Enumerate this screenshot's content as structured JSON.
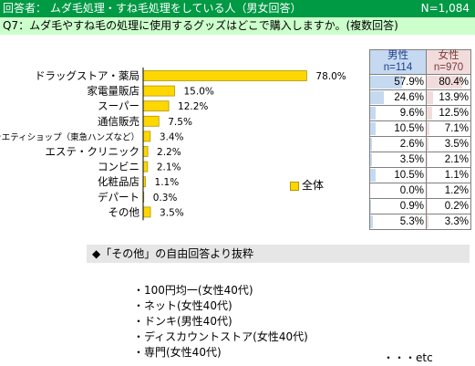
{
  "header": {
    "respondents": "回答者： ムダ毛処理・すね毛処理をしている人（男女回答）",
    "n": "N=1,084"
  },
  "question": "Q7：ムダ毛やすね毛の処理に使用するグッズはどこで購入しますか。(複数回答)",
  "colors": {
    "bar": "#ffd700",
    "bar_edge": "#b39600",
    "header": "#009944",
    "question_bg": "#ccffcc",
    "male": "#c5d9f1",
    "female": "#f2dcdb"
  },
  "chart_data": {
    "type": "bar",
    "orientation": "horizontal",
    "categories": [
      "ドラッグストア・薬局",
      "家電量販店",
      "スーパー",
      "通信販売",
      "バラエティショップ（東急ハンズなど）",
      "エステ・クリニック",
      "コンビニ",
      "化粧品店",
      "デパート",
      "その他"
    ],
    "series": [
      {
        "name": "全体",
        "values": [
          78.0,
          15.0,
          12.2,
          7.5,
          3.4,
          2.2,
          2.1,
          1.1,
          0.3,
          3.5
        ]
      }
    ],
    "value_labels": [
      "78.0%",
      "15.0%",
      "12.2%",
      "7.5%",
      "3.4%",
      "2.2%",
      "2.1%",
      "1.1%",
      "0.3%",
      "3.5%"
    ],
    "legend": "全体",
    "legend_position": "right"
  },
  "table": {
    "male_header": [
      "男性",
      "n=114"
    ],
    "female_header": [
      "女性",
      "n=970"
    ],
    "male": [
      57.9,
      24.6,
      9.6,
      10.5,
      2.6,
      3.5,
      10.5,
      0.0,
      0.9,
      5.3
    ],
    "female": [
      80.4,
      13.9,
      12.5,
      7.1,
      3.5,
      2.1,
      1.1,
      1.2,
      0.2,
      3.3
    ],
    "male_labels": [
      "57.9%",
      "24.6%",
      "9.6%",
      "10.5%",
      "2.6%",
      "3.5%",
      "10.5%",
      "0.0%",
      "0.9%",
      "5.3%"
    ],
    "female_labels": [
      "80.4%",
      "13.9%",
      "12.5%",
      "7.1%",
      "3.5%",
      "2.1%",
      "1.1%",
      "1.2%",
      "0.2%",
      "3.3%"
    ]
  },
  "free_answers": {
    "title": "◆「その他」の自由回答より抜粋",
    "items": [
      "・100円均一(女性40代)",
      "・ネット(女性40代)",
      "・ドンキ(男性40代)",
      "・ディスカウントストア(女性40代)",
      "・専門(女性40代)"
    ],
    "etc": "・・・etc"
  }
}
